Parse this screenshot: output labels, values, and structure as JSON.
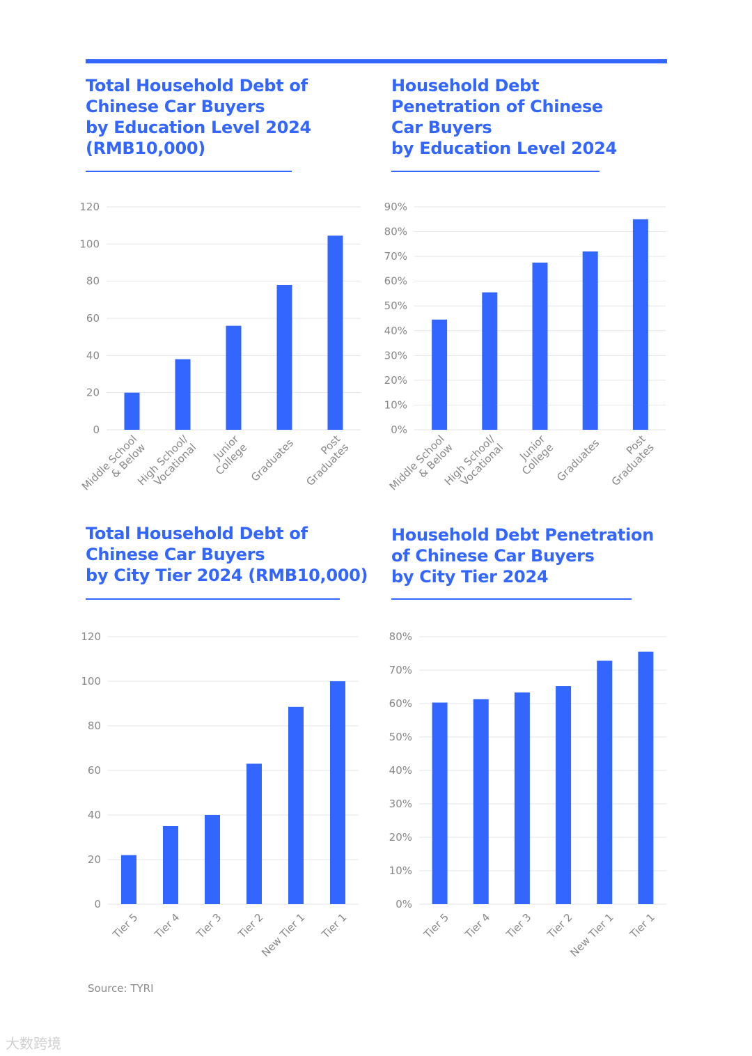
{
  "source": "Source: TYRI",
  "watermark": "大数跨境",
  "charts": [
    {
      "title_lines": [
        "Total Household Debt of",
        "Chinese Car Buyers",
        "by Education Level 2024",
        "(RMB10,000)"
      ],
      "chart_data": {
        "type": "bar",
        "title": "Total Household Debt of Chinese Car Buyers by Education Level 2024 (RMB10,000)",
        "categories": [
          [
            "Middle School",
            "& Below"
          ],
          [
            "High School/",
            "Vocational"
          ],
          [
            "Junior",
            "College"
          ],
          [
            "Graduates"
          ],
          [
            "Post",
            "Graduates"
          ]
        ],
        "values": [
          20,
          38,
          56,
          78,
          104.5
        ],
        "ylim": [
          0,
          120
        ],
        "yticks": [
          "0",
          "20",
          "40",
          "60",
          "80",
          "100",
          "120"
        ],
        "xlabel": "",
        "ylabel": "",
        "grid": true
      }
    },
    {
      "title_lines": [
        "Household Debt",
        "Penetration of Chinese",
        "Car Buyers",
        "by Education Level 2024"
      ],
      "chart_data": {
        "type": "bar",
        "title": "Household Debt Penetration of Chinese Car Buyers by Education Level 2024",
        "categories": [
          [
            "Middle School",
            "& Below"
          ],
          [
            "High School/",
            "Vocational"
          ],
          [
            "Junior",
            "College"
          ],
          [
            "Graduates"
          ],
          [
            "Post",
            "Graduates"
          ]
        ],
        "values": [
          44.5,
          55.5,
          67.5,
          72,
          85
        ],
        "ylim": [
          0,
          90
        ],
        "yticks": [
          "0%",
          "10%",
          "20%",
          "30%",
          "40%",
          "50%",
          "60%",
          "70%",
          "80%",
          "90%"
        ],
        "xlabel": "",
        "ylabel": "",
        "grid": true
      }
    },
    {
      "title_lines": [
        "Total Household Debt of",
        "Chinese Car Buyers",
        "by City Tier 2024 (RMB10,000)"
      ],
      "chart_data": {
        "type": "bar",
        "title": "Total Household Debt of Chinese Car Buyers by City Tier 2024 (RMB10,000)",
        "categories": [
          [
            "Tier 5"
          ],
          [
            "Tier 4"
          ],
          [
            "Tier 3"
          ],
          [
            "Tier 2"
          ],
          [
            "New Tier 1"
          ],
          [
            "Tier 1"
          ]
        ],
        "values": [
          22,
          35,
          40,
          63,
          88.5,
          100
        ],
        "ylim": [
          0,
          120
        ],
        "yticks": [
          "0",
          "20",
          "40",
          "60",
          "80",
          "100",
          "120"
        ],
        "xlabel": "",
        "ylabel": "",
        "grid": true
      }
    },
    {
      "title_lines": [
        "Household Debt Penetration",
        "of Chinese Car Buyers",
        "by City Tier 2024"
      ],
      "chart_data": {
        "type": "bar",
        "title": "Household Debt Penetration of Chinese Car Buyers by City Tier 2024",
        "categories": [
          [
            "Tier 5"
          ],
          [
            "Tier 4"
          ],
          [
            "Tier 3"
          ],
          [
            "Tier 2"
          ],
          [
            "New Tier 1"
          ],
          [
            "Tier 1"
          ]
        ],
        "values": [
          60.3,
          61.3,
          63.3,
          65.2,
          72.8,
          75.5
        ],
        "ylim": [
          0,
          80
        ],
        "yticks": [
          "0%",
          "10%",
          "20%",
          "30%",
          "40%",
          "50%",
          "60%",
          "70%",
          "80%"
        ],
        "xlabel": "",
        "ylabel": "",
        "grid": true
      }
    }
  ],
  "colors": {
    "accent": "#3366ff",
    "grid": "#e6e6e6",
    "tick": "#888888"
  }
}
